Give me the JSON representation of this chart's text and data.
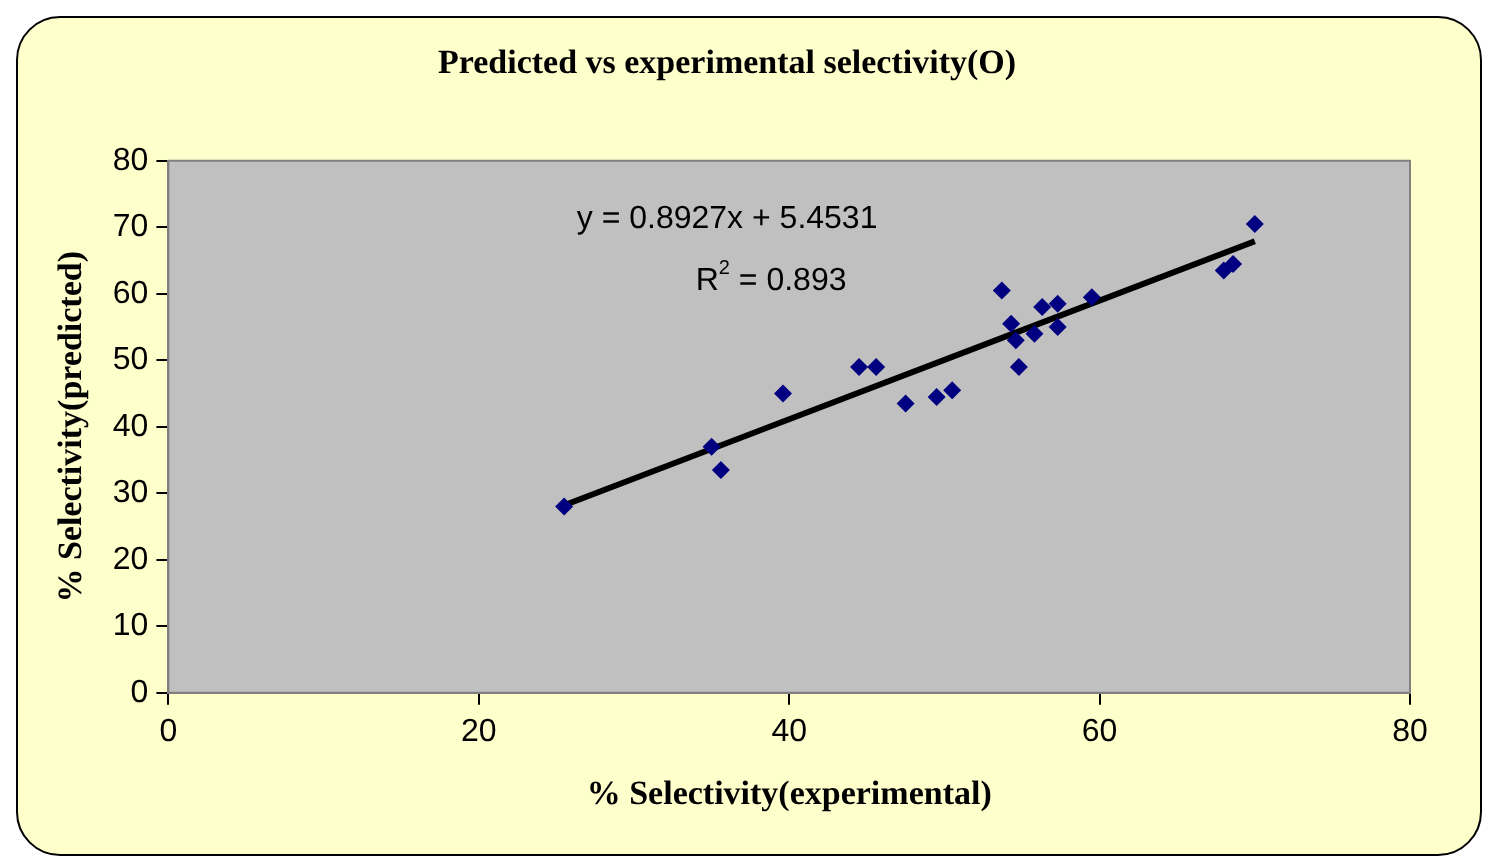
{
  "chart_data": {
    "type": "scatter",
    "title": "Predicted vs experimental selectivity(O)",
    "xlabel": "% Selectivity(experimental)",
    "ylabel": "% Selectivity(predicted)",
    "xlim": [
      0,
      80
    ],
    "xticks": [
      0,
      20,
      40,
      60,
      80
    ],
    "ylim": [
      0,
      80
    ],
    "yticks": [
      0,
      10,
      20,
      30,
      40,
      50,
      60,
      70,
      80
    ],
    "grid": false,
    "legend": false,
    "marker": "diamond",
    "series": [
      {
        "color": "#000080",
        "x": [
          25.5,
          35.0,
          35.6,
          39.6,
          44.5,
          45.6,
          47.5,
          49.5,
          50.5,
          53.7,
          54.3,
          54.6,
          54.8,
          55.8,
          56.3,
          57.3,
          57.3,
          59.5,
          68.0,
          68.6,
          70.0
        ],
        "values": [
          28,
          37,
          33.5,
          45,
          49,
          49,
          43.5,
          44.5,
          45.5,
          60.5,
          55.5,
          53,
          49,
          54,
          58,
          58.5,
          55,
          59.5,
          63.5,
          64.5,
          70.5
        ]
      },
      {
        "type": "line",
        "color": "#000000",
        "marker": "none",
        "line_style": "solid",
        "x": [
          25.5,
          70.0
        ],
        "values": [
          28.2,
          67.9
        ]
      }
    ],
    "annotations": [
      "y = 0.8927x + 5.4531",
      "R$^{2}$ = 0.893"
    ]
  }
}
